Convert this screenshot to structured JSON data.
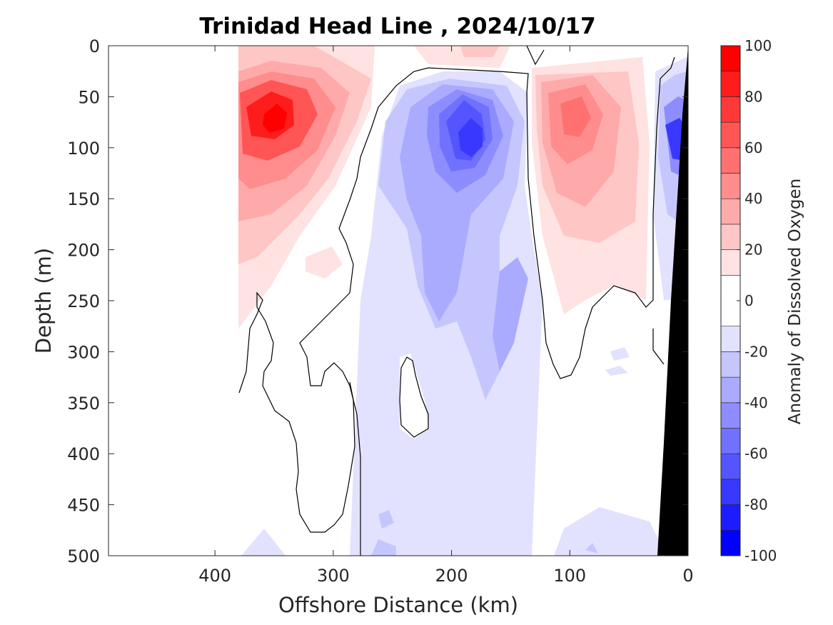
{
  "chart_data": {
    "type": "heatmap",
    "title": "Trinidad Head Line , 2024/10/17",
    "xlabel": "Offshore Distance (km)",
    "ylabel": "Depth (m)",
    "xlim": [
      490,
      0
    ],
    "ylim": [
      0,
      500
    ],
    "x_reversed": true,
    "y_reversed": true,
    "x_ticks": [
      400,
      300,
      200,
      100,
      0
    ],
    "y_ticks": [
      0,
      50,
      100,
      150,
      200,
      250,
      300,
      350,
      400,
      450,
      500
    ],
    "colorbar": {
      "label": "Anomaly of Dissolved Oxygen",
      "range": [
        -100,
        100
      ],
      "ticks": [
        -100,
        -80,
        -60,
        -40,
        -20,
        0,
        20,
        40,
        60,
        80,
        100
      ],
      "levels": [
        -100,
        -90,
        -80,
        -70,
        -60,
        -50,
        -40,
        -30,
        -20,
        -10,
        10,
        20,
        30,
        40,
        50,
        60,
        70,
        80,
        90,
        100
      ],
      "colors": [
        "#0000ff",
        "#1c1cff",
        "#3838ff",
        "#5555ff",
        "#7171ff",
        "#8d8dff",
        "#aaaaff",
        "#c6c6ff",
        "#e2e2ff",
        "#ffffff",
        "#ffe2e2",
        "#ffc6c6",
        "#ffaaaa",
        "#ff8d8d",
        "#ff7171",
        "#ff5555",
        "#ff3838",
        "#ff1c1c",
        "#ff0000"
      ]
    },
    "data_extent_x_km": [
      380,
      0
    ],
    "features": [
      {
        "name": "positive anomaly core near 350 km",
        "x": 350,
        "y": 75,
        "value": 90
      },
      {
        "name": "positive anomaly near 100 km",
        "x": 100,
        "y": 70,
        "value": 60
      },
      {
        "name": "negative anomaly core near 190 km",
        "x": 190,
        "y": 85,
        "value": -80
      },
      {
        "name": "nearshore negative anomaly",
        "x": 15,
        "y": 90,
        "value": -70
      }
    ],
    "bathymetry_color": "#000000",
    "contour_line_color": "#000000"
  }
}
